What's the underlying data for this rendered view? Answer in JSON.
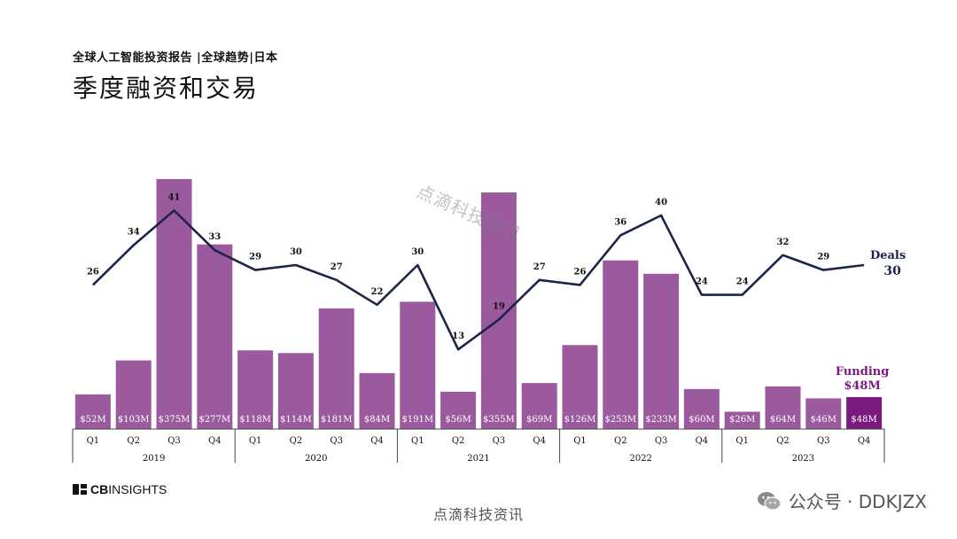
{
  "header": {
    "subtitle": "全球人工智能投资报告 |全球趋势|日本",
    "title": "季度融资和交易"
  },
  "chart_data": {
    "type": "bar",
    "categories": [
      "Q1",
      "Q2",
      "Q3",
      "Q4",
      "Q1",
      "Q2",
      "Q3",
      "Q4",
      "Q1",
      "Q2",
      "Q3",
      "Q4",
      "Q1",
      "Q2",
      "Q3",
      "Q4",
      "Q1",
      "Q2",
      "Q3",
      "Q4"
    ],
    "years": [
      "2019",
      "2020",
      "2021",
      "2022",
      "2023"
    ],
    "series": [
      {
        "name": "Funding",
        "unit": "$M",
        "type": "bar",
        "values": [
          52,
          103,
          375,
          277,
          118,
          114,
          181,
          84,
          191,
          56,
          355,
          69,
          126,
          253,
          233,
          60,
          26,
          64,
          46,
          48
        ],
        "labels": [
          "$52M",
          "$103M",
          "$375M",
          "$277M",
          "$118M",
          "$114M",
          "$181M",
          "$84M",
          "$191M",
          "$56M",
          "$355M",
          "$69M",
          "$126M",
          "$253M",
          "$233M",
          "$60M",
          "$26M",
          "$64M",
          "$46M",
          "$48M"
        ],
        "color": "#9c5a9e",
        "highlight_color": "#7b1a7e"
      },
      {
        "name": "Deals",
        "type": "line",
        "values": [
          26,
          34,
          41,
          33,
          29,
          30,
          27,
          22,
          30,
          13,
          19,
          27,
          26,
          36,
          40,
          24,
          24,
          32,
          29,
          30
        ],
        "color": "#1c2448"
      }
    ],
    "legend": {
      "deals_label": "Deals",
      "deals_value": "30",
      "funding_label": "Funding",
      "funding_value": "$48M"
    },
    "ylim_funding": [
      0,
      400
    ],
    "ylim_deals": [
      0,
      45
    ],
    "grid": false
  },
  "brand": {
    "prefix": "CB",
    "name": "INSIGHTS"
  },
  "footer": {
    "text": "点滴科技资讯"
  },
  "wechat": {
    "text": "公众号 · DDKJZX"
  },
  "watermark": {
    "text": "点滴科技资讯"
  }
}
